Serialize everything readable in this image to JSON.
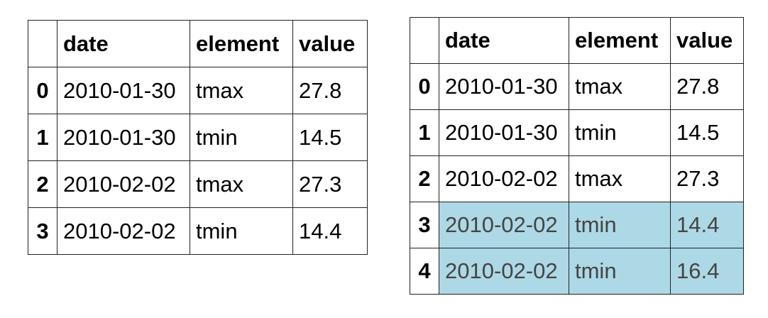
{
  "left_table": {
    "columns": [
      "",
      "date",
      "element",
      "value"
    ],
    "rows": [
      {
        "index": "0",
        "date": "2010-01-30",
        "element": "tmax",
        "value": "27.8"
      },
      {
        "index": "1",
        "date": "2010-01-30",
        "element": "tmin",
        "value": "14.5"
      },
      {
        "index": "2",
        "date": "2010-02-02",
        "element": "tmax",
        "value": "27.3"
      },
      {
        "index": "3",
        "date": "2010-02-02",
        "element": "tmin",
        "value": "14.4"
      }
    ]
  },
  "right_table": {
    "columns": [
      "",
      "date",
      "element",
      "value"
    ],
    "highlight_color": "#add8e6",
    "highlighted_rows": [
      "3",
      "4"
    ],
    "rows": [
      {
        "index": "0",
        "date": "2010-01-30",
        "element": "tmax",
        "value": "27.8"
      },
      {
        "index": "1",
        "date": "2010-01-30",
        "element": "tmin",
        "value": "14.5"
      },
      {
        "index": "2",
        "date": "2010-02-02",
        "element": "tmax",
        "value": "27.3"
      },
      {
        "index": "3",
        "date": "2010-02-02",
        "element": "tmin",
        "value": "14.4"
      },
      {
        "index": "4",
        "date": "2010-02-02",
        "element": "tmin",
        "value": "16.4"
      }
    ]
  }
}
